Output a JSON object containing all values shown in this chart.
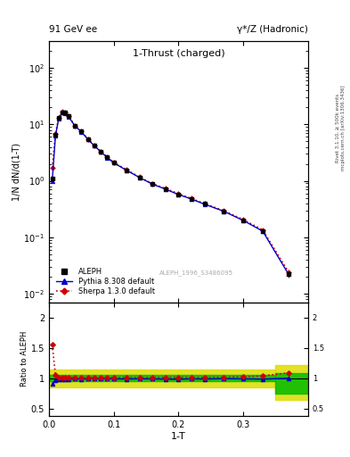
{
  "title_main": "1-Thrust (charged)",
  "header_left": "91 GeV ee",
  "header_right": "γ*/Z (Hadronic)",
  "ylabel_main": "1/N dN/d(1-T)",
  "ylabel_ratio": "Ratio to ALEPH",
  "xlabel": "1-T",
  "watermark": "ALEPH_1996_S3486095",
  "rivet_text": "Rivet 3.1.10, ≥ 500k events",
  "mcplots_text": "mcplots.cern.ch [arXiv:1306.3436]",
  "xlim": [
    0.0,
    0.4
  ],
  "ylim_main": [
    0.007,
    300
  ],
  "ylim_ratio": [
    0.38,
    2.25
  ],
  "aleph_x": [
    0.005,
    0.01,
    0.015,
    0.02,
    0.025,
    0.03,
    0.04,
    0.05,
    0.06,
    0.07,
    0.08,
    0.09,
    0.1,
    0.12,
    0.14,
    0.16,
    0.18,
    0.2,
    0.22,
    0.24,
    0.27,
    0.3,
    0.33,
    0.37
  ],
  "aleph_y": [
    1.1,
    6.5,
    13.0,
    16.5,
    16.0,
    14.0,
    9.5,
    7.5,
    5.5,
    4.2,
    3.3,
    2.6,
    2.1,
    1.55,
    1.15,
    0.88,
    0.72,
    0.58,
    0.48,
    0.39,
    0.29,
    0.2,
    0.13,
    0.022
  ],
  "aleph_yerr": [
    0.1,
    0.3,
    0.5,
    0.6,
    0.6,
    0.5,
    0.3,
    0.2,
    0.2,
    0.15,
    0.12,
    0.1,
    0.08,
    0.06,
    0.05,
    0.04,
    0.03,
    0.02,
    0.02,
    0.015,
    0.012,
    0.01,
    0.008,
    0.003
  ],
  "pythia_x": [
    0.005,
    0.01,
    0.015,
    0.02,
    0.025,
    0.03,
    0.04,
    0.05,
    0.06,
    0.07,
    0.08,
    0.09,
    0.1,
    0.12,
    0.14,
    0.16,
    0.18,
    0.2,
    0.22,
    0.24,
    0.27,
    0.3,
    0.33,
    0.37
  ],
  "pythia_y": [
    1.0,
    6.3,
    12.8,
    16.2,
    15.8,
    13.8,
    9.4,
    7.4,
    5.45,
    4.18,
    3.28,
    2.58,
    2.08,
    1.53,
    1.14,
    0.87,
    0.71,
    0.57,
    0.475,
    0.385,
    0.288,
    0.198,
    0.128,
    0.022
  ],
  "sherpa_x": [
    0.005,
    0.01,
    0.015,
    0.02,
    0.025,
    0.03,
    0.04,
    0.05,
    0.06,
    0.07,
    0.08,
    0.09,
    0.1,
    0.12,
    0.14,
    0.16,
    0.18,
    0.2,
    0.22,
    0.24,
    0.27,
    0.3,
    0.33,
    0.37
  ],
  "sherpa_y": [
    1.7,
    6.8,
    13.2,
    16.6,
    16.1,
    14.1,
    9.6,
    7.55,
    5.55,
    4.22,
    3.32,
    2.62,
    2.12,
    1.57,
    1.16,
    0.89,
    0.73,
    0.59,
    0.485,
    0.395,
    0.295,
    0.205,
    0.135,
    0.024
  ],
  "pythia_ratio": [
    0.91,
    0.97,
    0.985,
    0.982,
    0.988,
    0.986,
    0.989,
    0.987,
    0.991,
    0.995,
    0.994,
    0.992,
    0.99,
    0.987,
    0.991,
    0.989,
    0.986,
    0.983,
    0.99,
    0.987,
    0.993,
    0.99,
    0.985,
    1.0
  ],
  "sherpa_ratio": [
    1.55,
    1.05,
    1.015,
    1.006,
    1.006,
    1.007,
    1.011,
    1.007,
    1.009,
    1.005,
    1.006,
    1.008,
    1.01,
    1.013,
    1.009,
    1.011,
    1.014,
    1.017,
    1.01,
    1.013,
    1.017,
    1.025,
    1.038,
    1.09
  ],
  "color_aleph": "#000000",
  "color_pythia": "#0000cc",
  "color_sherpa": "#cc0000",
  "color_green": "#00bb00",
  "color_yellow": "#dddd00",
  "bg_color": "#ffffff"
}
